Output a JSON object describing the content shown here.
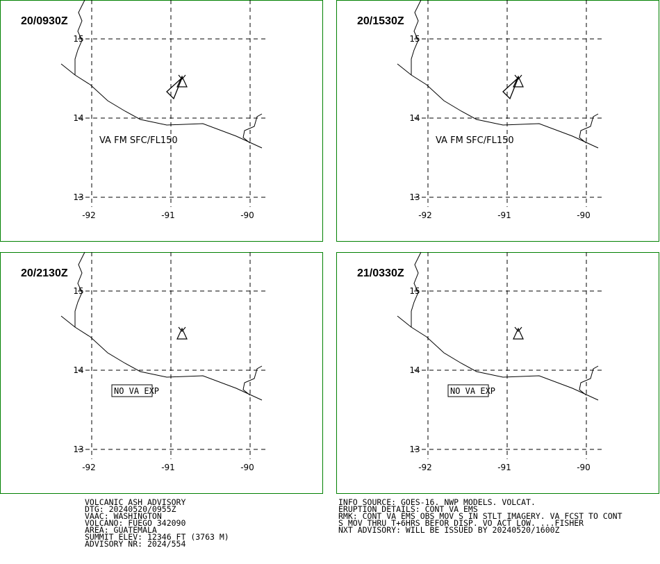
{
  "panels": [
    {
      "time": "20/0930Z",
      "annotation": "VA FM SFC/FL150",
      "ash": true
    },
    {
      "time": "20/1530Z",
      "annotation": "VA FM SFC/FL150",
      "ash": true
    },
    {
      "time": "20/2130Z",
      "annotation": "NO VA EXP",
      "ash": false
    },
    {
      "time": "21/0330Z",
      "annotation": "NO VA EXP",
      "ash": false
    }
  ],
  "lat_labels": [
    "15",
    "14",
    "13"
  ],
  "lon_labels": [
    "-92",
    "-91",
    "-90"
  ],
  "advisory_left": [
    "VOLCANIC ASH ADVISORY",
    "DTG: 20240520/0955Z",
    "VAAC: WASHINGTON",
    "VOLCANO: FUEGO 342090",
    "AREA: GUATEMALA",
    "SUMMIT ELEV: 12346 FT (3763 M)",
    "ADVISORY NR: 2024/554"
  ],
  "advisory_right": [
    "INFO SOURCE: GOES-16. NWP MODELS. VOLCAT.",
    "ERUPTION DETAILS: CONT VA EMS",
    "RMK: CONT VA EMS OBS MOV S IN STLT IMAGERY. VA FCST TO CONT",
    "S MOV THRU T+6HRS BEFOR DISP. VO ACT LOW. ...FISHER",
    "NXT ADVISORY: WILL BE ISSUED BY 20240520/1600Z"
  ]
}
